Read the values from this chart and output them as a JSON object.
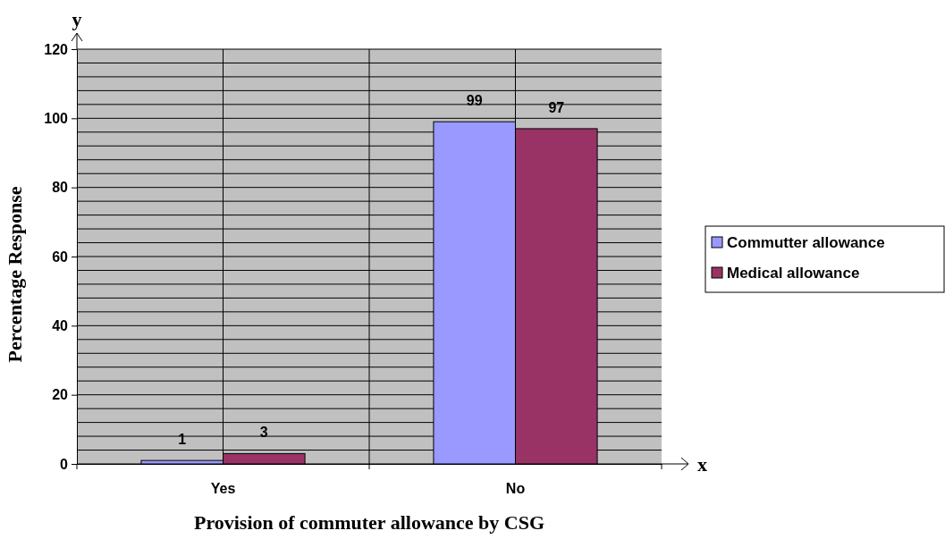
{
  "chart_data": {
    "type": "bar",
    "xlabel": "Provision of commuter allowance by CSG",
    "ylabel": "Percentage Response",
    "annotations": [
      "x",
      "y"
    ],
    "categories": [
      "Yes",
      "No"
    ],
    "series": [
      {
        "name": "Commutter allowance",
        "color": "#9999ff",
        "values": [
          1,
          99
        ]
      },
      {
        "name": "Medical allowance",
        "color": "#993366",
        "values": [
          3,
          97
        ]
      }
    ],
    "ylim": [
      0,
      120
    ],
    "yticks": [
      0,
      {
        "value": 4,
        "label": null
      },
      {
        "value": 8,
        "label": null
      },
      {
        "value": 12,
        "label": null
      },
      {
        "value": 16,
        "label": null
      },
      20,
      {
        "value": 24,
        "label": null
      },
      {
        "value": 28,
        "label": null
      },
      {
        "value": 32,
        "label": null
      },
      {
        "value": 36,
        "label": null
      },
      40,
      {
        "value": 44,
        "label": null
      },
      {
        "value": 48,
        "label": null
      },
      {
        "value": 52,
        "label": null
      },
      {
        "value": 56,
        "label": null
      },
      60,
      {
        "value": 64,
        "label": null
      },
      {
        "value": 68,
        "label": null
      },
      {
        "value": 72,
        "label": null
      },
      {
        "value": 76,
        "label": null
      },
      80,
      {
        "value": 84,
        "label": null
      },
      {
        "value": 88,
        "label": null
      },
      {
        "value": 92,
        "label": null
      },
      {
        "value": 96,
        "label": null
      },
      100,
      {
        "value": 104,
        "label": null
      },
      {
        "value": 108,
        "label": null
      },
      {
        "value": 112,
        "label": null
      },
      {
        "value": 116,
        "label": null
      },
      120
    ],
    "grid": true,
    "legend": "right",
    "data_labels": true
  }
}
